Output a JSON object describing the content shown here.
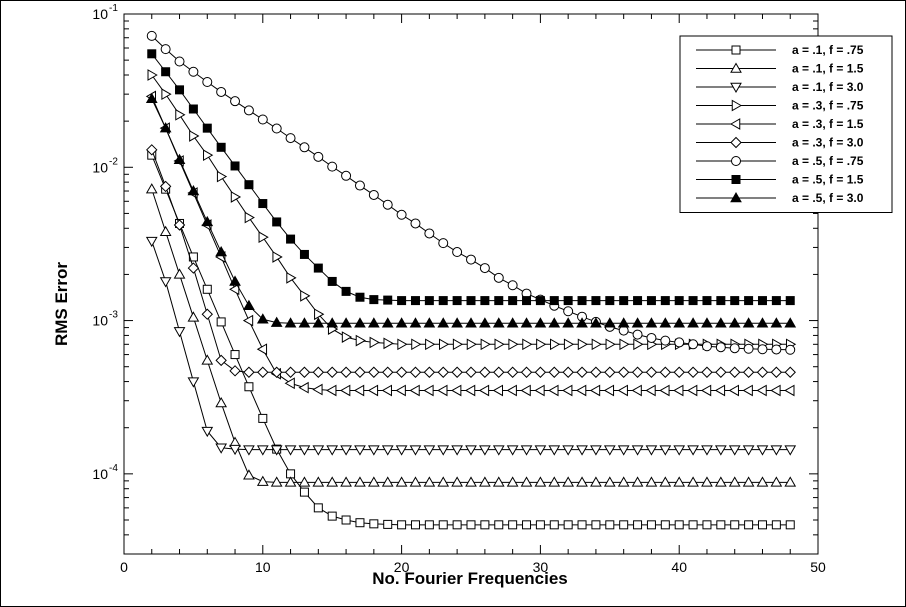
{
  "chart_data": {
    "type": "line",
    "xlabel": "No. Fourier Frequencies",
    "ylabel": "RMS Error",
    "x_scale": "linear",
    "y_scale": "log",
    "xlim": [
      0,
      50
    ],
    "ylim": [
      3e-05,
      0.1
    ],
    "x_ticks": [
      0,
      10,
      20,
      30,
      40,
      50
    ],
    "x_tick_labels": [
      "0",
      "10",
      "20",
      "30",
      "40",
      "50"
    ],
    "y_ticks": [
      {
        "value": 0.1,
        "base": "10",
        "exp": "-1"
      },
      {
        "value": 0.01,
        "base": "10",
        "exp": "-2"
      },
      {
        "value": 0.001,
        "base": "10",
        "exp": "-3"
      },
      {
        "value": 0.0001,
        "base": "10",
        "exp": "-4"
      }
    ],
    "grid": false,
    "legend_position": "top-right",
    "x": [
      2,
      3,
      4,
      5,
      6,
      7,
      8,
      9,
      10,
      11,
      12,
      13,
      14,
      15,
      16,
      17,
      18,
      19,
      20,
      21,
      22,
      23,
      24,
      25,
      26,
      27,
      28,
      29,
      30,
      31,
      32,
      33,
      34,
      35,
      36,
      37,
      38,
      39,
      40,
      41,
      42,
      43,
      44,
      45,
      46,
      47,
      48
    ],
    "series": [
      {
        "name": "a = .1, f = .75",
        "marker": "square-open",
        "values": [
          0.012,
          0.0072,
          0.0043,
          0.0026,
          0.0016,
          0.00098,
          0.0006,
          0.00037,
          0.00023,
          0.000145,
          0.0001,
          7.6e-05,
          6e-05,
          5.3e-05,
          5e-05,
          4.8e-05,
          4.72e-05,
          4.68e-05,
          4.65e-05,
          4.65e-05,
          4.65e-05,
          4.65e-05,
          4.65e-05,
          4.65e-05,
          4.65e-05,
          4.65e-05,
          4.65e-05,
          4.65e-05,
          4.65e-05,
          4.65e-05,
          4.65e-05,
          4.65e-05,
          4.65e-05,
          4.65e-05,
          4.65e-05,
          4.65e-05,
          4.65e-05,
          4.65e-05,
          4.65e-05,
          4.65e-05,
          4.65e-05,
          4.65e-05,
          4.65e-05,
          4.65e-05,
          4.65e-05,
          4.65e-05,
          4.65e-05
        ]
      },
      {
        "name": "a = .1, f = 1.5",
        "marker": "triangle-up-open",
        "values": [
          0.0072,
          0.0038,
          0.002,
          0.00105,
          0.00055,
          0.00029,
          0.00016,
          9.8e-05,
          8.9e-05,
          8.8e-05,
          8.8e-05,
          8.8e-05,
          8.8e-05,
          8.8e-05,
          8.8e-05,
          8.8e-05,
          8.8e-05,
          8.8e-05,
          8.8e-05,
          8.8e-05,
          8.8e-05,
          8.8e-05,
          8.8e-05,
          8.8e-05,
          8.8e-05,
          8.8e-05,
          8.8e-05,
          8.8e-05,
          8.8e-05,
          8.8e-05,
          8.8e-05,
          8.8e-05,
          8.8e-05,
          8.8e-05,
          8.8e-05,
          8.8e-05,
          8.8e-05,
          8.8e-05,
          8.8e-05,
          8.8e-05,
          8.8e-05,
          8.8e-05,
          8.8e-05,
          8.8e-05,
          8.8e-05,
          8.8e-05,
          8.8e-05
        ]
      },
      {
        "name": "a = .1, f = 3.0",
        "marker": "triangle-down-open",
        "values": [
          0.0033,
          0.0018,
          0.00085,
          0.0004,
          0.00019,
          0.000148,
          0.000145,
          0.000144,
          0.000144,
          0.000144,
          0.000144,
          0.000144,
          0.000144,
          0.000144,
          0.000144,
          0.000144,
          0.000144,
          0.000144,
          0.000144,
          0.000144,
          0.000144,
          0.000144,
          0.000144,
          0.000144,
          0.000144,
          0.000144,
          0.000144,
          0.000144,
          0.000144,
          0.000144,
          0.000144,
          0.000144,
          0.000144,
          0.000144,
          0.000144,
          0.000144,
          0.000144,
          0.000144,
          0.000144,
          0.000144,
          0.000144,
          0.000144,
          0.000144,
          0.000144,
          0.000144,
          0.000144,
          0.000144
        ]
      },
      {
        "name": "a = .3, f = .75",
        "marker": "triangle-right-open",
        "values": [
          0.04,
          0.03,
          0.022,
          0.016,
          0.012,
          0.0087,
          0.0064,
          0.0047,
          0.0035,
          0.0026,
          0.0019,
          0.00145,
          0.0011,
          0.00088,
          0.00078,
          0.00074,
          0.00072,
          0.00071,
          0.0007,
          0.0007,
          0.0007,
          0.0007,
          0.0007,
          0.0007,
          0.0007,
          0.0007,
          0.0007,
          0.0007,
          0.0007,
          0.0007,
          0.0007,
          0.0007,
          0.0007,
          0.0007,
          0.0007,
          0.0007,
          0.0007,
          0.0007,
          0.0007,
          0.0007,
          0.0007,
          0.0007,
          0.0007,
          0.0007,
          0.0007,
          0.0007,
          0.0007
        ]
      },
      {
        "name": "a = .3, f = 1.5",
        "marker": "triangle-left-open",
        "values": [
          0.029,
          0.018,
          0.011,
          0.0068,
          0.0042,
          0.0026,
          0.0016,
          0.001,
          0.00065,
          0.00045,
          0.00039,
          0.000365,
          0.000355,
          0.00035,
          0.00035,
          0.00035,
          0.00035,
          0.00035,
          0.00035,
          0.00035,
          0.00035,
          0.00035,
          0.00035,
          0.00035,
          0.00035,
          0.00035,
          0.00035,
          0.00035,
          0.00035,
          0.00035,
          0.00035,
          0.00035,
          0.00035,
          0.00035,
          0.00035,
          0.00035,
          0.00035,
          0.00035,
          0.00035,
          0.00035,
          0.00035,
          0.00035,
          0.00035,
          0.00035,
          0.00035,
          0.00035,
          0.00035
        ]
      },
      {
        "name": "a = .3, f = 3.0",
        "marker": "diamond-open",
        "values": [
          0.013,
          0.0075,
          0.0042,
          0.0022,
          0.0011,
          0.00055,
          0.00047,
          0.00046,
          0.00046,
          0.00046,
          0.00046,
          0.00046,
          0.00046,
          0.00046,
          0.00046,
          0.00046,
          0.00046,
          0.00046,
          0.00046,
          0.00046,
          0.00046,
          0.00046,
          0.00046,
          0.00046,
          0.00046,
          0.00046,
          0.00046,
          0.00046,
          0.00046,
          0.00046,
          0.00046,
          0.00046,
          0.00046,
          0.00046,
          0.00046,
          0.00046,
          0.00046,
          0.00046,
          0.00046,
          0.00046,
          0.00046,
          0.00046,
          0.00046,
          0.00046,
          0.00046,
          0.00046,
          0.00046
        ]
      },
      {
        "name": "a = .5, f = .75",
        "marker": "circle-open",
        "values": [
          0.072,
          0.059,
          0.049,
          0.042,
          0.036,
          0.031,
          0.027,
          0.0235,
          0.0205,
          0.0179,
          0.0155,
          0.0135,
          0.0117,
          0.0101,
          0.0088,
          0.0076,
          0.0066,
          0.0057,
          0.0049,
          0.0043,
          0.0037,
          0.0032,
          0.0028,
          0.0025,
          0.0022,
          0.0019,
          0.0017,
          0.0015,
          0.00137,
          0.00125,
          0.00115,
          0.00106,
          0.00098,
          0.00091,
          0.00086,
          0.00081,
          0.00077,
          0.00074,
          0.00072,
          0.0007,
          0.00068,
          0.00067,
          0.00066,
          0.000655,
          0.00065,
          0.000648,
          0.000645
        ]
      },
      {
        "name": "a = .5, f = 1.5",
        "marker": "square-filled",
        "values": [
          0.055,
          0.042,
          0.032,
          0.024,
          0.018,
          0.0135,
          0.0102,
          0.0077,
          0.0058,
          0.0044,
          0.0034,
          0.0027,
          0.0022,
          0.0018,
          0.00155,
          0.00142,
          0.00137,
          0.00136,
          0.00135,
          0.00135,
          0.00135,
          0.00135,
          0.00135,
          0.00135,
          0.00135,
          0.00135,
          0.00135,
          0.00135,
          0.00135,
          0.00135,
          0.00135,
          0.00135,
          0.00135,
          0.00135,
          0.00135,
          0.00135,
          0.00135,
          0.00135,
          0.00135,
          0.00135,
          0.00135,
          0.00135,
          0.00135,
          0.00135,
          0.00135,
          0.00135,
          0.00135
        ]
      },
      {
        "name": "a = .5, f = 3.0",
        "marker": "triangle-up-filled",
        "values": [
          0.028,
          0.018,
          0.0112,
          0.007,
          0.0044,
          0.0028,
          0.0018,
          0.00125,
          0.00102,
          0.00097,
          0.00096,
          0.00096,
          0.00096,
          0.00096,
          0.00096,
          0.00096,
          0.00096,
          0.00096,
          0.00096,
          0.00096,
          0.00096,
          0.00096,
          0.00096,
          0.00096,
          0.00096,
          0.00096,
          0.00096,
          0.00096,
          0.00096,
          0.00096,
          0.00096,
          0.00096,
          0.00096,
          0.00096,
          0.00096,
          0.00096,
          0.00096,
          0.00096,
          0.00096,
          0.00096,
          0.00096,
          0.00096,
          0.00096,
          0.00096,
          0.00096,
          0.00096,
          0.00096
        ]
      }
    ]
  }
}
